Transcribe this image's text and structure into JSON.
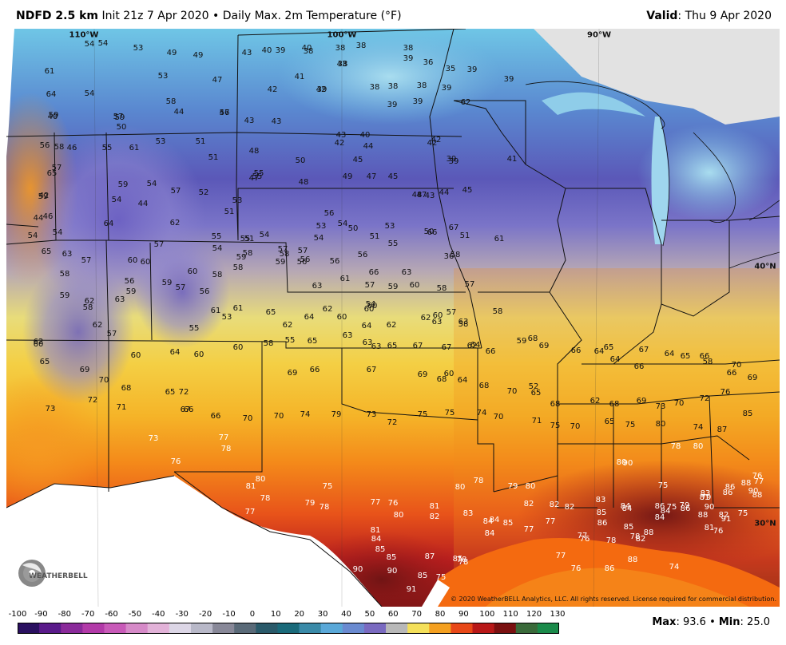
{
  "header": {
    "product": "NDFD 2.5 km",
    "init": "Init 21z 7 Apr 2020",
    "separator": "•",
    "field": "Daily Max. 2m Temperature (°F)",
    "valid_label": "Valid",
    "valid_date": ": Thu 9 Apr 2020"
  },
  "copyright": "© 2020 WeatherBELL Analytics, LLC. All rights reserved. License required for commercial distribution.",
  "logo": {
    "text": "WEATHERBELL",
    "icon": "weatherbell-swirl-icon"
  },
  "coords": [
    "110°W",
    "100°W",
    "90°W",
    "40°N",
    "30°N"
  ],
  "colorbar": {
    "ticks": [
      "-100",
      "-90",
      "-80",
      "-70",
      "-60",
      "-50",
      "-40",
      "-30",
      "-20",
      "-10",
      "0",
      "10",
      "20",
      "30",
      "40",
      "50",
      "60",
      "70",
      "80",
      "90",
      "100",
      "110",
      "120",
      "130"
    ]
  },
  "stats": {
    "max_label": "Max",
    "max_value": ": 93.6",
    "sep": "•",
    "min_label": "Min",
    "min_value": ": 25.0"
  },
  "labels": {
    "dark": [
      "54",
      "54",
      "53",
      "49",
      "49",
      "43",
      "40",
      "39",
      "40",
      "38",
      "38",
      "38",
      "38",
      "39",
      "61",
      "53",
      "47",
      "41",
      "43",
      "38",
      "36",
      "35",
      "39",
      "39",
      "64",
      "54",
      "58",
      "56",
      "42",
      "42",
      "39",
      "38",
      "38",
      "38",
      "39",
      "62",
      "59",
      "57",
      "44",
      "47",
      "43",
      "43",
      "39",
      "39",
      "40",
      "59",
      "50",
      "53",
      "51",
      "51",
      "43",
      "42",
      "40",
      "44",
      "42",
      "39",
      "56",
      "58",
      "46",
      "55",
      "61",
      "48",
      "50",
      "45",
      "42",
      "39",
      "41",
      "65",
      "57",
      "59",
      "54",
      "57",
      "52",
      "51",
      "55",
      "47",
      "55",
      "48",
      "49",
      "47",
      "45",
      "43",
      "44",
      "45",
      "42",
      "59",
      "54",
      "44",
      "53",
      "55",
      "56",
      "54",
      "50",
      "48",
      "47",
      "44",
      "46",
      "64",
      "62",
      "55",
      "51",
      "54",
      "53",
      "51",
      "53",
      "50",
      "51",
      "61",
      "54",
      "54",
      "57",
      "54",
      "58",
      "58",
      "54",
      "56",
      "55",
      "66",
      "67",
      "65",
      "63",
      "57",
      "60",
      "60",
      "59",
      "57",
      "57",
      "56",
      "56",
      "66",
      "63",
      "36",
      "58",
      "58",
      "56",
      "59",
      "60",
      "58",
      "58",
      "59",
      "56",
      "63",
      "61",
      "57",
      "54",
      "59",
      "60",
      "58",
      "57",
      "59",
      "62",
      "58",
      "63",
      "59",
      "57",
      "56",
      "61",
      "65",
      "64",
      "62",
      "60",
      "60",
      "62",
      "60",
      "57",
      "58",
      "58",
      "62",
      "57",
      "55",
      "61",
      "53",
      "62",
      "60",
      "64",
      "62",
      "63",
      "63",
      "62",
      "60",
      "60",
      "64",
      "60",
      "60",
      "58",
      "55",
      "65",
      "63",
      "63",
      "63",
      "65",
      "67",
      "67",
      "64",
      "62",
      "66",
      "59",
      "68",
      "69",
      "66",
      "64",
      "65",
      "64",
      "67",
      "66",
      "64",
      "65",
      "66",
      "58",
      "70",
      "66",
      "65",
      "69",
      "70",
      "68",
      "65",
      "72",
      "69",
      "66",
      "67",
      "69",
      "68",
      "60",
      "64",
      "68",
      "70",
      "52",
      "65",
      "68",
      "62",
      "68",
      "69",
      "73",
      "70",
      "72",
      "76",
      "69",
      "73",
      "72",
      "71",
      "67",
      "66",
      "66",
      "70",
      "70",
      "74",
      "79",
      "73",
      "72",
      "75",
      "75",
      "74",
      "70",
      "71",
      "75",
      "70",
      "65",
      "75",
      "80",
      "74",
      "87",
      "85"
    ],
    "light": [
      "73",
      "77",
      "78",
      "76",
      "75",
      "80",
      "81",
      "78",
      "77",
      "79",
      "78",
      "77",
      "76",
      "80",
      "81",
      "82",
      "83",
      "84",
      "84",
      "80",
      "78",
      "79",
      "80",
      "82",
      "82",
      "82",
      "83",
      "84",
      "84",
      "85",
      "86",
      "85",
      "86",
      "86",
      "88",
      "90",
      "91",
      "81",
      "84",
      "85",
      "85",
      "87",
      "85",
      "84",
      "85",
      "77",
      "77",
      "77",
      "76",
      "78",
      "78",
      "84",
      "79",
      "79",
      "83",
      "86",
      "88",
      "86",
      "88",
      "90",
      "81",
      "82",
      "90",
      "90",
      "91",
      "85",
      "75",
      "78",
      "78",
      "77",
      "76",
      "86",
      "88",
      "82",
      "84",
      "75",
      "76",
      "77",
      "78",
      "80",
      "81",
      "80",
      "90",
      "88",
      "75",
      "75",
      "74",
      "76"
    ]
  }
}
